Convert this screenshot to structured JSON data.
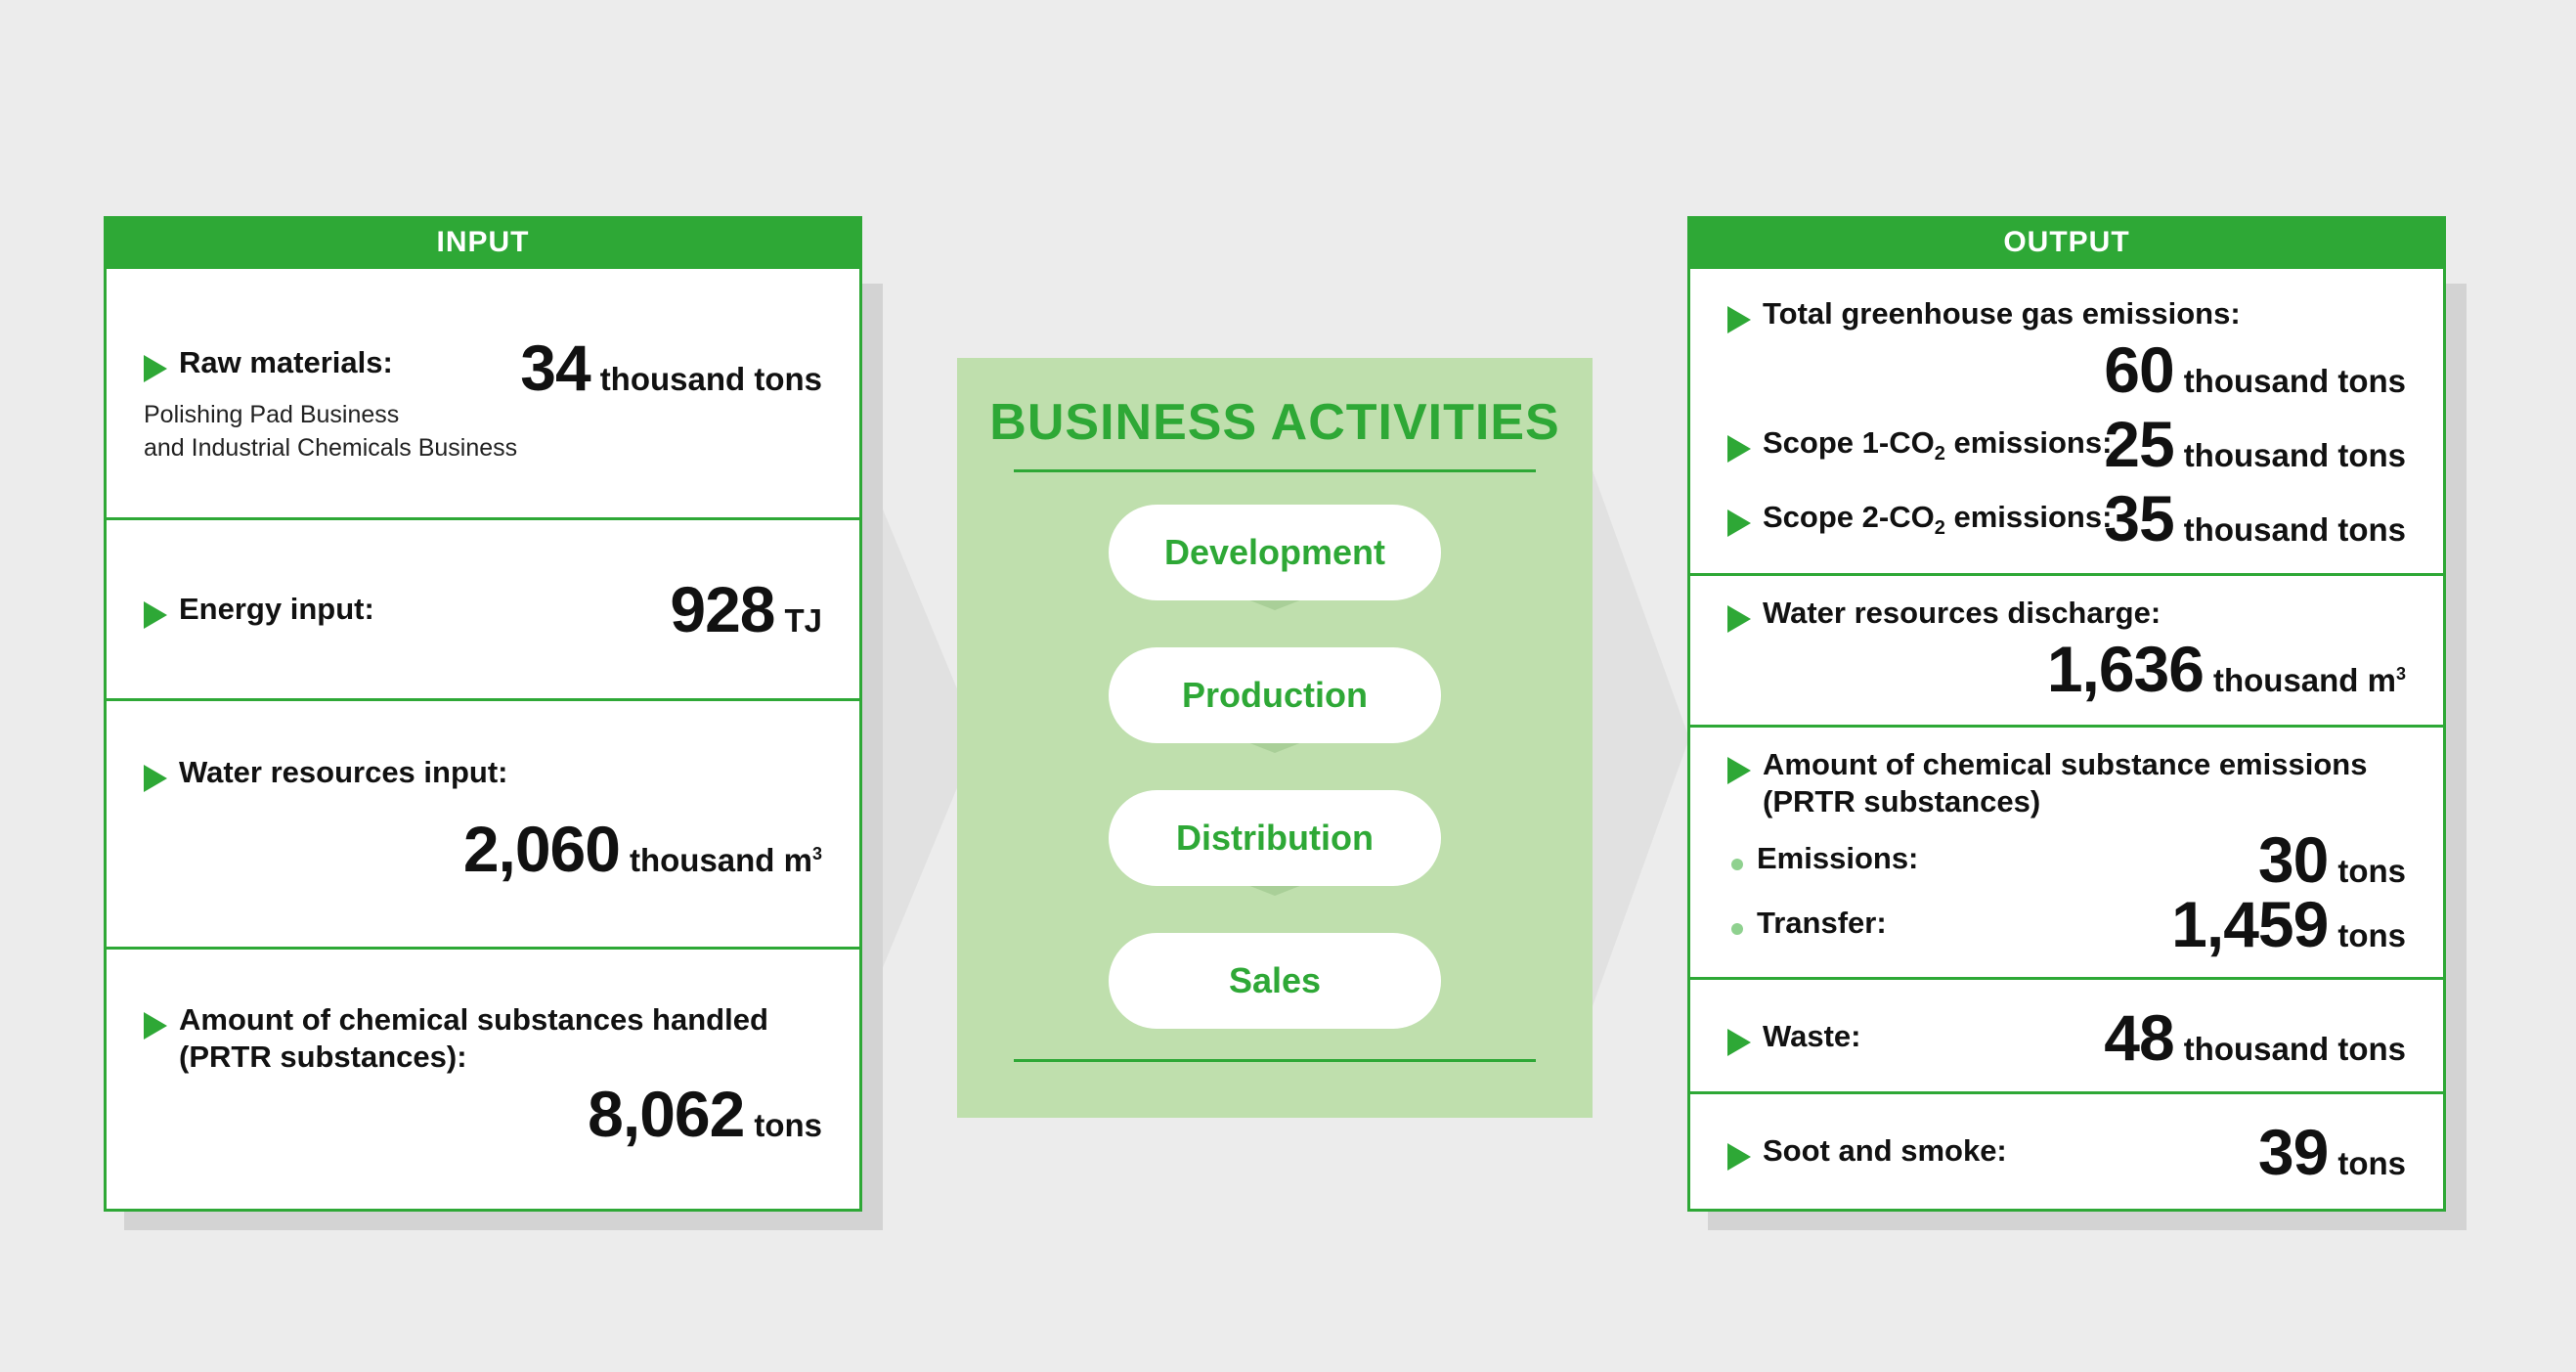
{
  "input": {
    "header": "INPUT",
    "raw_materials": {
      "label": "Raw materials:",
      "value": "34",
      "unit": "thousand tons",
      "note1": "Polishing Pad Business",
      "note2": "and Industrial Chemicals Business"
    },
    "energy": {
      "label": "Energy input:",
      "value": "928",
      "unit": "TJ"
    },
    "water": {
      "label": "Water resources input:",
      "value": "2,060",
      "unit": "thousand m",
      "unit_sup": "3"
    },
    "chemicals": {
      "label1": "Amount of chemical substances handled",
      "label2": "(PRTR substances):",
      "value": "8,062",
      "unit": "tons"
    }
  },
  "business": {
    "title": "BUSINESS ACTIVITIES",
    "steps": [
      "Development",
      "Production",
      "Distribution",
      "Sales"
    ]
  },
  "output": {
    "header": "OUTPUT",
    "ghg": {
      "label": "Total greenhouse gas emissions:",
      "value": "60",
      "unit": "thousand tons"
    },
    "scope1": {
      "label_pre": "Scope 1-CO",
      "label_sub": "2",
      "label_post": " emissions:",
      "value": "25",
      "unit": "thousand tons"
    },
    "scope2": {
      "label_pre": "Scope 2-CO",
      "label_sub": "2",
      "label_post": " emissions:",
      "value": "35",
      "unit": "thousand tons"
    },
    "water": {
      "label": "Water resources discharge:",
      "value": "1,636",
      "unit": "thousand m",
      "unit_sup": "3"
    },
    "chemicals": {
      "label1": "Amount of chemical substance emissions",
      "label2": "(PRTR substances)",
      "emissions_label": "Emissions:",
      "emissions_value": "30",
      "emissions_unit": "tons",
      "transfer_label": "Transfer:",
      "transfer_value": "1,459",
      "transfer_unit": "tons"
    },
    "waste": {
      "label": "Waste:",
      "value": "48",
      "unit": "thousand tons"
    },
    "soot": {
      "label": "Soot and smoke:",
      "value": "39",
      "unit": "tons"
    }
  },
  "colors": {
    "accent": "#2ea836",
    "center_bg": "#bfdfad",
    "background": "#ececec"
  }
}
